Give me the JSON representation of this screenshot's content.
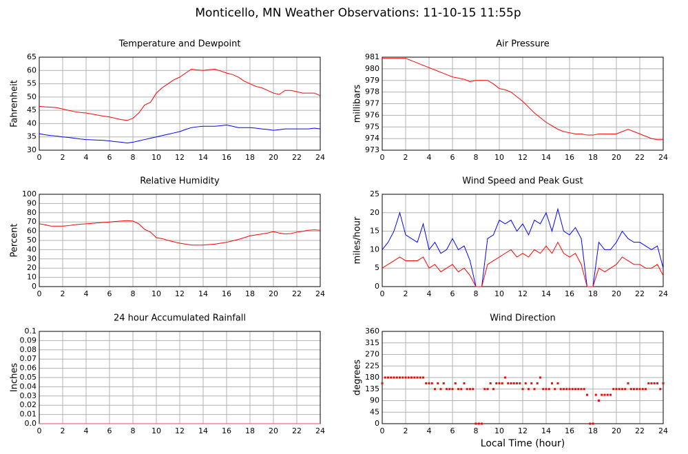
{
  "title": "Monticello, MN Weather Observations: 11-10-15 11:55p",
  "chart_data": [
    {
      "type": "line",
      "title": "Temperature and Dewpoint",
      "ylabel": "Fahrenheit",
      "x": [
        0,
        0.5,
        1,
        1.5,
        2,
        2.5,
        3,
        3.5,
        4,
        4.5,
        5,
        5.5,
        6,
        6.5,
        7,
        7.5,
        8,
        8.5,
        9,
        9.5,
        10,
        10.5,
        11,
        11.5,
        12,
        12.5,
        13,
        13.5,
        14,
        14.5,
        15,
        15.5,
        16,
        16.5,
        17,
        17.5,
        18,
        18.5,
        19,
        19.5,
        20,
        20.5,
        21,
        21.5,
        22,
        22.5,
        23,
        23.5,
        24
      ],
      "series": [
        {
          "color": "#ff0000",
          "values": [
            46.5,
            46.3,
            46.2,
            46.0,
            45.5,
            45.0,
            44.5,
            44.2,
            44.0,
            43.6,
            43.2,
            42.8,
            42.5,
            42.0,
            41.5,
            41.2,
            42.0,
            44.0,
            47.0,
            48.0,
            51.5,
            53.5,
            55.0,
            56.5,
            57.5,
            59.0,
            60.5,
            60.2,
            60.0,
            60.3,
            60.5,
            59.8,
            59.0,
            58.5,
            57.5,
            56.0,
            55.0,
            54.0,
            53.5,
            52.5,
            51.5,
            51.0,
            52.5,
            52.5,
            52.0,
            51.5,
            51.5,
            51.5,
            50.5
          ]
        },
        {
          "color": "#0000ff",
          "values": [
            36.2,
            35.8,
            35.5,
            35.3,
            35.0,
            34.8,
            34.5,
            34.2,
            34.0,
            33.9,
            33.8,
            33.7,
            33.5,
            33.2,
            33.0,
            32.7,
            33.0,
            33.5,
            34.0,
            34.5,
            35.0,
            35.5,
            36.0,
            36.5,
            37.0,
            37.8,
            38.5,
            38.8,
            39.0,
            39.0,
            39.0,
            39.2,
            39.5,
            39.0,
            38.5,
            38.5,
            38.5,
            38.3,
            38.0,
            37.8,
            37.5,
            37.7,
            38.0,
            38.0,
            38.0,
            38.0,
            38.0,
            38.3,
            38.0
          ]
        }
      ],
      "xlim": [
        0,
        24
      ],
      "xticks": [
        0,
        2,
        4,
        6,
        8,
        10,
        12,
        14,
        16,
        18,
        20,
        22,
        24
      ],
      "ylim": [
        30,
        65
      ],
      "yticks": [
        30,
        35,
        40,
        45,
        50,
        55,
        60,
        65
      ],
      "grid": true
    },
    {
      "type": "line",
      "title": "Air Pressure",
      "ylabel": "millibars",
      "x": [
        0,
        0.5,
        1,
        1.5,
        2,
        2.5,
        3,
        3.5,
        4,
        4.5,
        5,
        5.5,
        6,
        6.5,
        7,
        7.5,
        8,
        8.5,
        9,
        9.5,
        10,
        10.5,
        11,
        11.5,
        12,
        12.5,
        13,
        13.5,
        14,
        14.5,
        15,
        15.5,
        16,
        16.5,
        17,
        17.5,
        18,
        18.5,
        19,
        19.5,
        20,
        20.5,
        21,
        21.5,
        22,
        22.5,
        23,
        23.5,
        24
      ],
      "series": [
        {
          "color": "#ff0000",
          "values": [
            980.9,
            980.9,
            980.9,
            980.9,
            980.9,
            980.7,
            980.5,
            980.3,
            980.1,
            979.9,
            979.7,
            979.5,
            979.3,
            979.2,
            979.1,
            978.9,
            979.0,
            979.0,
            979.0,
            978.7,
            978.3,
            978.2,
            978.0,
            977.6,
            977.2,
            976.7,
            976.2,
            975.8,
            975.4,
            975.1,
            974.8,
            974.6,
            974.5,
            974.4,
            974.4,
            974.3,
            974.3,
            974.4,
            974.4,
            974.4,
            974.4,
            974.6,
            974.8,
            974.6,
            974.4,
            974.2,
            974.0,
            973.9,
            973.9
          ]
        }
      ],
      "xlim": [
        0,
        24
      ],
      "xticks": [
        0,
        2,
        4,
        6,
        8,
        10,
        12,
        14,
        16,
        18,
        20,
        22,
        24
      ],
      "ylim": [
        973,
        981
      ],
      "yticks": [
        973,
        974,
        975,
        976,
        977,
        978,
        979,
        980,
        981
      ],
      "grid": true
    },
    {
      "type": "line",
      "title": "Relative Humidity",
      "ylabel": "Percent",
      "x": [
        0,
        0.5,
        1,
        1.5,
        2,
        2.5,
        3,
        3.5,
        4,
        4.5,
        5,
        5.5,
        6,
        6.5,
        7,
        7.5,
        8,
        8.5,
        9,
        9.5,
        10,
        10.5,
        11,
        11.5,
        12,
        12.5,
        13,
        13.5,
        14,
        14.5,
        15,
        15.5,
        16,
        16.5,
        17,
        17.5,
        18,
        18.5,
        19,
        19.5,
        20,
        20.5,
        21,
        21.5,
        22,
        22.5,
        23,
        23.5,
        24
      ],
      "series": [
        {
          "color": "#ff0000",
          "values": [
            68,
            67,
            65.5,
            65.5,
            65.5,
            66,
            67,
            67.5,
            68,
            68.5,
            69,
            69.5,
            70,
            70.5,
            71,
            71.5,
            71,
            68,
            62,
            59,
            53,
            52,
            50,
            48.5,
            47,
            46,
            45,
            45,
            45,
            45.5,
            46,
            47,
            48,
            49.5,
            51,
            53,
            55,
            56,
            57,
            58,
            59.5,
            58,
            57,
            57.5,
            59,
            60,
            61,
            61.5,
            61
          ]
        }
      ],
      "xlim": [
        0,
        24
      ],
      "xticks": [
        0,
        2,
        4,
        6,
        8,
        10,
        12,
        14,
        16,
        18,
        20,
        22,
        24
      ],
      "ylim": [
        0,
        100
      ],
      "yticks": [
        0,
        10,
        20,
        30,
        40,
        50,
        60,
        70,
        80,
        90,
        100
      ],
      "grid": true
    },
    {
      "type": "line",
      "title": "Wind Speed and Peak Gust",
      "ylabel": "miles/hour",
      "x": [
        0,
        0.5,
        1,
        1.5,
        2,
        2.5,
        3,
        3.5,
        4,
        4.5,
        5,
        5.5,
        6,
        6.5,
        7,
        7.5,
        8,
        8.5,
        9,
        9.5,
        10,
        10.5,
        11,
        11.5,
        12,
        12.5,
        13,
        13.5,
        14,
        14.5,
        15,
        15.5,
        16,
        16.5,
        17,
        17.5,
        18,
        18.5,
        19,
        19.5,
        20,
        20.5,
        21,
        21.5,
        22,
        22.5,
        23,
        23.5,
        24
      ],
      "series": [
        {
          "color": "#0000ff",
          "values": [
            10,
            12,
            15,
            20,
            14,
            13,
            12,
            17,
            10,
            12,
            9,
            10,
            13,
            10,
            11,
            7,
            0,
            0,
            13,
            14,
            18,
            17,
            18,
            15,
            17,
            14,
            18,
            17,
            20,
            15,
            21,
            15,
            14,
            16,
            13,
            0,
            0,
            12,
            10,
            10,
            12,
            15,
            13,
            12,
            12,
            11,
            10,
            11,
            5
          ]
        },
        {
          "color": "#ff0000",
          "values": [
            5,
            6,
            7,
            8,
            7,
            7,
            7,
            8,
            5,
            6,
            4,
            5,
            6,
            4,
            5,
            3,
            0,
            0,
            6,
            7,
            8,
            9,
            10,
            8,
            9,
            8,
            10,
            9,
            11,
            9,
            12,
            9,
            8,
            9,
            6,
            0,
            0,
            5,
            4,
            5,
            6,
            8,
            7,
            6,
            6,
            5,
            5,
            6,
            3
          ]
        }
      ],
      "xlim": [
        0,
        24
      ],
      "xticks": [
        0,
        2,
        4,
        6,
        8,
        10,
        12,
        14,
        16,
        18,
        20,
        22,
        24
      ],
      "ylim": [
        0,
        25
      ],
      "yticks": [
        0,
        5,
        10,
        15,
        20,
        25
      ],
      "grid": true
    },
    {
      "type": "line",
      "title": "24 hour Accumulated Rainfall",
      "ylabel": "Inches",
      "x": [
        0,
        24
      ],
      "series": [
        {
          "color": "#ff4060",
          "values": [
            0,
            0
          ]
        }
      ],
      "xlim": [
        0,
        24
      ],
      "xticks": [
        0,
        2,
        4,
        6,
        8,
        10,
        12,
        14,
        16,
        18,
        20,
        22,
        24
      ],
      "ylim": [
        0,
        0.1
      ],
      "yticks": [
        {
          "value": 0,
          "label": "0.0"
        },
        0.01,
        0.02,
        0.03,
        0.04,
        0.05,
        0.06,
        0.07,
        0.08,
        0.09,
        0.1
      ],
      "grid": true
    },
    {
      "type": "scatter",
      "title": "Wind Direction",
      "ylabel": "degrees",
      "xlabel": "Local Time (hour)",
      "x": [
        0,
        0.25,
        0.5,
        0.75,
        1,
        1.25,
        1.5,
        1.75,
        2,
        2.25,
        2.5,
        2.75,
        3,
        3.25,
        3.5,
        3.75,
        4,
        4.25,
        4.5,
        4.75,
        5,
        5.25,
        5.5,
        5.75,
        6,
        6.25,
        6.5,
        6.75,
        7,
        7.25,
        7.5,
        7.75,
        8,
        8.25,
        8.5,
        8.75,
        9,
        9.25,
        9.5,
        9.75,
        10,
        10.25,
        10.5,
        10.75,
        11,
        11.25,
        11.5,
        11.75,
        12,
        12.25,
        12.5,
        12.75,
        13,
        13.25,
        13.5,
        13.75,
        14,
        14.25,
        14.5,
        14.75,
        15,
        15.25,
        15.5,
        15.75,
        16,
        16.25,
        16.5,
        16.75,
        17,
        17.25,
        17.5,
        17.75,
        18,
        18.25,
        18.5,
        18.75,
        19,
        19.25,
        19.5,
        19.75,
        20,
        20.25,
        20.5,
        20.75,
        21,
        21.25,
        21.5,
        21.75,
        22,
        22.25,
        22.5,
        22.75,
        23,
        23.25,
        23.5,
        23.75,
        24
      ],
      "series": [
        {
          "color": "#ff0000",
          "values": [
            157.5,
            180,
            180,
            180,
            180,
            180,
            180,
            180,
            180,
            180,
            180,
            180,
            180,
            180,
            180,
            157.5,
            157.5,
            157.5,
            135,
            157.5,
            135,
            157.5,
            135,
            135,
            135,
            157.5,
            135,
            135,
            157.5,
            135,
            135,
            135,
            0,
            0,
            0,
            135,
            135,
            157.5,
            135,
            157.5,
            157.5,
            157.5,
            180,
            157.5,
            157.5,
            157.5,
            157.5,
            157.5,
            135,
            157.5,
            135,
            157.5,
            135,
            157.5,
            180,
            135,
            135,
            135,
            157.5,
            135,
            157.5,
            135,
            135,
            135,
            135,
            135,
            135,
            135,
            135,
            135,
            112.5,
            0,
            0,
            112.5,
            90,
            112.5,
            112.5,
            112.5,
            112.5,
            135,
            135,
            135,
            135,
            135,
            157.5,
            135,
            135,
            135,
            135,
            135,
            135,
            157.5,
            157.5,
            157.5,
            157.5,
            135,
            157.5
          ]
        }
      ],
      "xlim": [
        0,
        24
      ],
      "xticks": [
        0,
        2,
        4,
        6,
        8,
        10,
        12,
        14,
        16,
        18,
        20,
        22,
        24
      ],
      "ylim": [
        0,
        360
      ],
      "yticks": [
        0,
        45,
        90,
        135,
        180,
        225,
        270,
        315,
        360
      ],
      "grid": true
    }
  ]
}
